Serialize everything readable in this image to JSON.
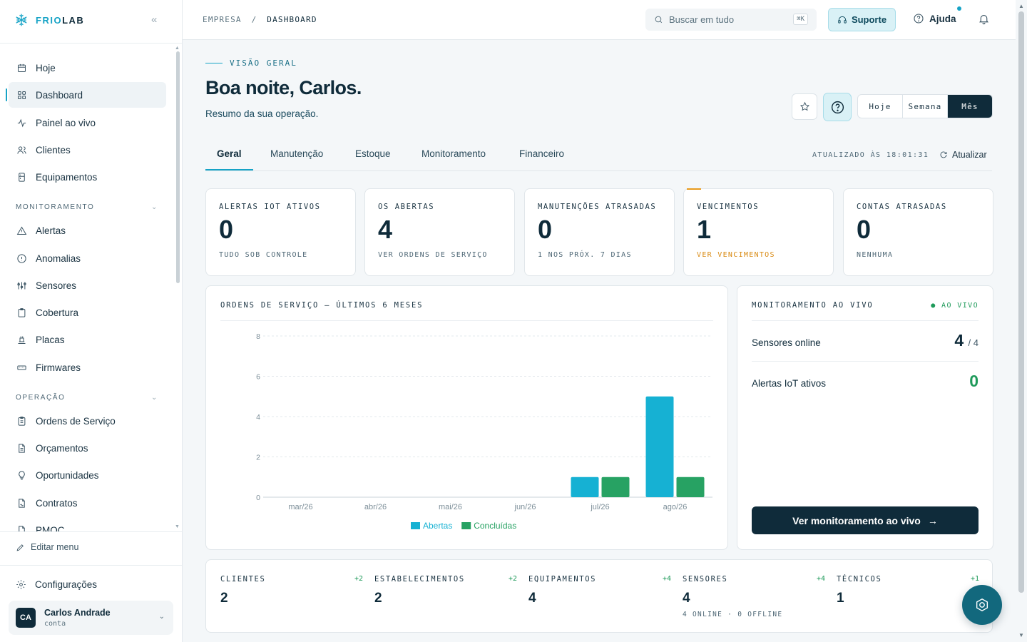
{
  "brand": {
    "part1": "FRIO",
    "part2": "LAB"
  },
  "sidebar": {
    "items_top": [
      {
        "label": "Hoje",
        "icon": "calendar-icon"
      },
      {
        "label": "Dashboard",
        "icon": "grid-icon",
        "active": true
      },
      {
        "label": "Painel ao vivo",
        "icon": "activity-icon"
      },
      {
        "label": "Clientes",
        "icon": "users-icon"
      },
      {
        "label": "Equipamentos",
        "icon": "fridge-icon"
      }
    ],
    "section_monitoramento": "MONITORAMENTO",
    "items_monitoramento": [
      {
        "label": "Alertas",
        "icon": "alert-triangle-icon"
      },
      {
        "label": "Anomalias",
        "icon": "alert-circle-icon"
      },
      {
        "label": "Sensores",
        "icon": "sensor-icon"
      },
      {
        "label": "Cobertura",
        "icon": "clipboard-icon"
      },
      {
        "label": "Placas",
        "icon": "board-icon"
      },
      {
        "label": "Firmwares",
        "icon": "chip-icon"
      }
    ],
    "section_operacao": "OPERAÇÃO",
    "items_operacao": [
      {
        "label": "Ordens de Serviço",
        "icon": "clipboard-list-icon"
      },
      {
        "label": "Orçamentos",
        "icon": "file-text-icon"
      },
      {
        "label": "Oportunidades",
        "icon": "lightbulb-icon"
      },
      {
        "label": "Contratos",
        "icon": "file-signature-icon"
      },
      {
        "label": "PMOC",
        "icon": "file-icon"
      }
    ],
    "edit_menu": "Editar menu",
    "settings": "Configurações",
    "user": {
      "initials": "CA",
      "name": "Carlos Andrade",
      "sub": "conta"
    }
  },
  "topbar": {
    "breadcrumb_root": "EMPRESA",
    "breadcrumb_sep": "/",
    "breadcrumb_current": "DASHBOARD",
    "search_placeholder": "Buscar em tudo",
    "search_shortcut": "⌘K",
    "support_label": "Suporte",
    "help_label": "Ajuda"
  },
  "header": {
    "eyebrow": "VISÃO GERAL",
    "greeting": "Boa noite, Carlos.",
    "subtitle": "Resumo da sua operação.",
    "periods": [
      "Hoje",
      "Semana",
      "Mês"
    ],
    "selected_period": "Mês"
  },
  "tabs": {
    "items": [
      "Geral",
      "Manutenção",
      "Estoque",
      "Monitoramento",
      "Financeiro"
    ],
    "active": "Geral",
    "updated": "ATUALIZADO ÀS 18:01:31",
    "refresh_label": "Atualizar"
  },
  "kpis": [
    {
      "label": "ALERTAS IOT ATIVOS",
      "value": "0",
      "sub": "TUDO SOB CONTROLE"
    },
    {
      "label": "OS ABERTAS",
      "value": "4",
      "sub": "VER ORDENS DE SERVIÇO"
    },
    {
      "label": "MANUTENÇÕES ATRASADAS",
      "value": "0",
      "sub": "1 NOS PRÓX. 7 DIAS"
    },
    {
      "label": "VENCIMENTOS",
      "value": "1",
      "sub": "VER VENCIMENTOS"
    },
    {
      "label": "CONTAS ATRASADAS",
      "value": "0",
      "sub": "NENHUMA"
    }
  ],
  "chart_card": {
    "title": "ORDENS DE SERVIÇO — ÚLTIMOS 6 MESES"
  },
  "chart_data": {
    "type": "bar",
    "categories": [
      "mar/26",
      "abr/26",
      "mai/26",
      "jun/26",
      "jul/26",
      "ago/26"
    ],
    "series": [
      {
        "name": "Abertas",
        "values": [
          0,
          0,
          0,
          0,
          1,
          5
        ],
        "color": "#16b1d3"
      },
      {
        "name": "Concluídas",
        "values": [
          0,
          0,
          0,
          0,
          1,
          1
        ],
        "color": "#27a263"
      }
    ],
    "yticks": [
      0,
      2,
      4,
      6,
      8
    ],
    "ylim": [
      0,
      8
    ],
    "grid": true,
    "legend": "bottom-center"
  },
  "live": {
    "title": "MONITORAMENTO AO VIVO",
    "badge": "● AO VIVO",
    "sensors_label": "Sensores online",
    "sensors_value": "4",
    "sensors_total": "/ 4",
    "alerts_label": "Alertas IoT ativos",
    "alerts_value": "0",
    "button_label": "Ver monitoramento ao vivo",
    "button_arrow": "→"
  },
  "stats": [
    {
      "label": "CLIENTES",
      "delta": "+2",
      "value": "2",
      "sub": ""
    },
    {
      "label": "ESTABELECIMENTOS",
      "delta": "+2",
      "value": "2",
      "sub": ""
    },
    {
      "label": "EQUIPAMENTOS",
      "delta": "+4",
      "value": "4",
      "sub": ""
    },
    {
      "label": "SENSORES",
      "delta": "+4",
      "value": "4",
      "sub": "4 ONLINE · 0 OFFLINE"
    },
    {
      "label": "TÉCNICOS",
      "delta": "+1",
      "value": "1",
      "sub": ""
    }
  ],
  "colors": {
    "accent": "#16a3c6",
    "dark": "#0f2b3a",
    "success": "#1f9a5a",
    "warning": "#d98a12"
  }
}
